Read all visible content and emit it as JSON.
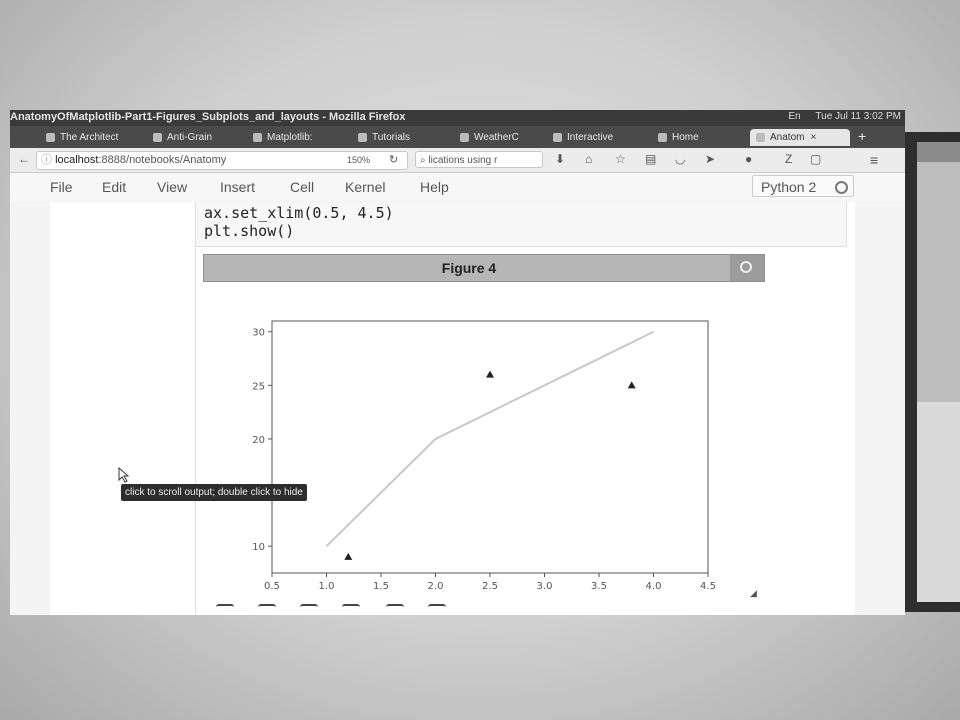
{
  "window": {
    "title": "AnatomyOfMatplotlib-Part1-Figures_Subplots_and_layouts - Mozilla Firefox",
    "system_tray": {
      "lang": "En",
      "clock": "Tue Jul 11  3:02 PM"
    }
  },
  "tabs": [
    {
      "label": "The Architect"
    },
    {
      "label": "Anti-Grain"
    },
    {
      "label": "Matplotlib:"
    },
    {
      "label": "Tutorials"
    },
    {
      "label": "WeatherC"
    },
    {
      "label": "Interactive"
    },
    {
      "label": "Home"
    },
    {
      "label": "Anatom",
      "active": true
    }
  ],
  "navbar": {
    "url_host": "localhost",
    "url_path": ":8888/notebooks/Anatomy",
    "zoom": "150%",
    "search_text": "lications using r"
  },
  "menu": [
    "File",
    "Edit",
    "View",
    "Insert",
    "Cell",
    "Kernel",
    "Help"
  ],
  "kernel": "Python 2",
  "code": [
    "ax.set_xlim(0.5, 4.5)",
    "plt.show()"
  ],
  "figure": {
    "title": "Figure 4"
  },
  "tooltip": "click to scroll output; double click to hide",
  "chart_data": {
    "type": "line",
    "xlim": [
      0.5,
      4.5
    ],
    "ylim": [
      7.5,
      31
    ],
    "xticks": [
      "0.5",
      "1.0",
      "1.5",
      "2.0",
      "2.5",
      "3.0",
      "3.5",
      "4.0",
      "4.5"
    ],
    "yticks": [
      "10",
      "15",
      "20",
      "25",
      "30"
    ],
    "series": [
      {
        "kind": "line",
        "x": [
          1,
          2,
          3,
          4
        ],
        "y": [
          10,
          20,
          25,
          30
        ],
        "color": "#c8c8c8"
      },
      {
        "kind": "scatter",
        "marker": "triangle",
        "x": [
          1.2,
          2.5,
          3.8
        ],
        "y": [
          9,
          26,
          25
        ],
        "color": "#222222"
      }
    ]
  }
}
